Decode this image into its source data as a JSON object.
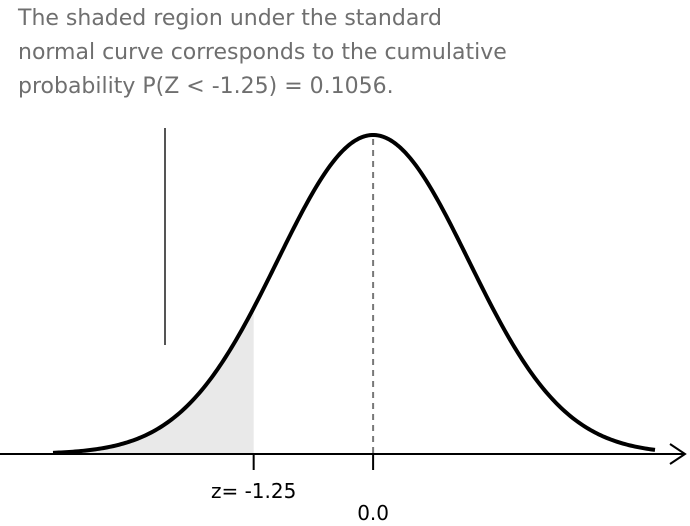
{
  "caption": {
    "line1": "The shaded region under the standard",
    "line2": "normal curve corresponds to the cumulative",
    "line3": "probability P(Z < -1.25) = 0.1056."
  },
  "chart_data": {
    "type": "area",
    "distribution": "standard normal",
    "xlim": [
      -3.35,
      2.95
    ],
    "shaded_region": {
      "from": -3.35,
      "to": -1.25,
      "probability": 0.1056,
      "color": "#e9e9e9"
    },
    "mean": 0.0,
    "tick_labels": [
      {
        "value": -1.25,
        "label": "z= -1.25"
      },
      {
        "value": 0.0,
        "label": "0.0"
      }
    ],
    "colors": {
      "curve": "#000000",
      "axis": "#000000",
      "mean_line": "#777777",
      "shade": "#e9e9e9"
    }
  }
}
